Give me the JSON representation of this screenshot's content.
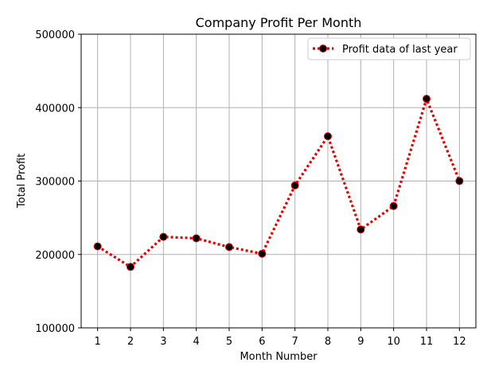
{
  "chart_data": {
    "type": "line",
    "title": "Company Profit Per Month",
    "xlabel": "Month Number",
    "ylabel": "Total Profit",
    "x": [
      1,
      2,
      3,
      4,
      5,
      6,
      7,
      8,
      9,
      10,
      11,
      12
    ],
    "xticks": [
      "1",
      "2",
      "3",
      "4",
      "5",
      "6",
      "7",
      "8",
      "9",
      "10",
      "11",
      "12"
    ],
    "yticks": [
      "100000",
      "200000",
      "300000",
      "400000",
      "500000"
    ],
    "ylim": [
      100000,
      500000
    ],
    "grid": true,
    "legend_position": "top-right",
    "series": [
      {
        "name": "Profit data of last year",
        "values": [
          211000,
          183000,
          224000,
          222000,
          210000,
          201000,
          294000,
          361000,
          234000,
          266000,
          412000,
          300000
        ],
        "line_color": "#e60000",
        "line_style": "dotted",
        "marker": "circle",
        "marker_face_color": "#000000",
        "marker_edge_color": "#e60000"
      }
    ]
  }
}
